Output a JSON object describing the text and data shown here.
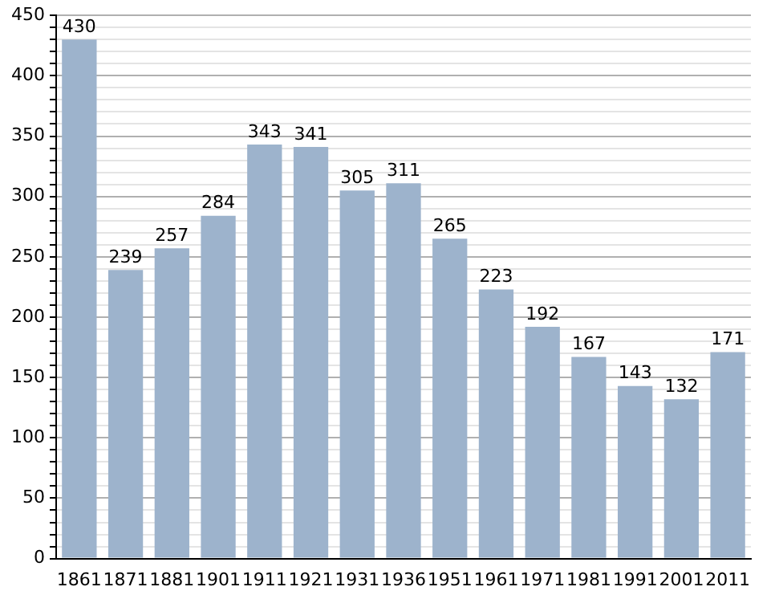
{
  "chart_data": {
    "type": "bar",
    "categories": [
      "1861",
      "1871",
      "1881",
      "1901",
      "1911",
      "1921",
      "1931",
      "1936",
      "1951",
      "1961",
      "1971",
      "1981",
      "1991",
      "2001",
      "2011"
    ],
    "values": [
      430,
      239,
      257,
      284,
      343,
      341,
      305,
      311,
      265,
      223,
      192,
      167,
      143,
      132,
      171
    ],
    "color": "#9db3cc",
    "ylim": [
      0,
      450
    ],
    "yticks": [
      0,
      {
        "value": 10,
        "label": null
      },
      {
        "value": 20,
        "label": null
      },
      {
        "value": 30,
        "label": null
      },
      {
        "value": 40,
        "label": null
      },
      50,
      {
        "value": 60,
        "label": null
      },
      {
        "value": 70,
        "label": null
      },
      {
        "value": 80,
        "label": null
      },
      {
        "value": 90,
        "label": null
      },
      100,
      {
        "value": 110,
        "label": null
      },
      {
        "value": 120,
        "label": null
      },
      {
        "value": 130,
        "label": null
      },
      {
        "value": 140,
        "label": null
      },
      150,
      {
        "value": 160,
        "label": null
      },
      {
        "value": 170,
        "label": null
      },
      {
        "value": 180,
        "label": null
      },
      {
        "value": 190,
        "label": null
      },
      200,
      {
        "value": 210,
        "label": null
      },
      {
        "value": 220,
        "label": null
      },
      {
        "value": 230,
        "label": null
      },
      {
        "value": 240,
        "label": null
      },
      250,
      {
        "value": 260,
        "label": null
      },
      {
        "value": 270,
        "label": null
      },
      {
        "value": 280,
        "label": null
      },
      {
        "value": 290,
        "label": null
      },
      300,
      {
        "value": 310,
        "label": null
      },
      {
        "value": 320,
        "label": null
      },
      {
        "value": 330,
        "label": null
      },
      {
        "value": 340,
        "label": null
      },
      350,
      {
        "value": 360,
        "label": null
      },
      {
        "value": 370,
        "label": null
      },
      {
        "value": 380,
        "label": null
      },
      {
        "value": 390,
        "label": null
      },
      400,
      {
        "value": 410,
        "label": null
      },
      {
        "value": 420,
        "label": null
      },
      {
        "value": 430,
        "label": null
      },
      {
        "value": 440,
        "label": null
      },
      450
    ],
    "grid": "y",
    "data_labels": true,
    "legend": false
  }
}
